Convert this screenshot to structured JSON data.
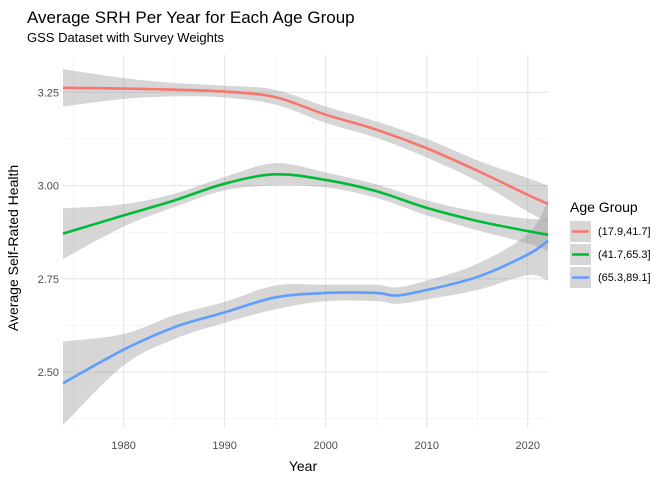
{
  "chart_data": {
    "type": "line",
    "title": "Average SRH Per Year for Each Age Group",
    "subtitle": "GSS Dataset with Survey Weights",
    "xlabel": "Year",
    "ylabel": "Average Self-Rated Health",
    "xlim": [
      1974,
      2022
    ],
    "ylim": [
      2.35,
      3.35
    ],
    "x_ticks": [
      "1980",
      "1990",
      "2000",
      "2010",
      "2020"
    ],
    "y_ticks": [
      "2.50",
      "2.75",
      "3.00",
      "3.25"
    ],
    "grid": true,
    "legend": {
      "title": "Age Group",
      "position": "right"
    },
    "series": [
      {
        "name": "(17.9,41.7]",
        "color": "#F8766D",
        "x": [
          1974,
          1980,
          1985,
          1990,
          1995,
          2000,
          2005,
          2010,
          2015,
          2020,
          2022
        ],
        "y": [
          3.262,
          3.26,
          3.257,
          3.252,
          3.237,
          3.19,
          3.15,
          3.1,
          3.04,
          2.975,
          2.951
        ],
        "lower": [
          3.212,
          3.232,
          3.239,
          3.236,
          3.217,
          3.168,
          3.128,
          3.075,
          3.012,
          2.93,
          2.902
        ],
        "upper": [
          3.312,
          3.288,
          3.275,
          3.268,
          3.257,
          3.212,
          3.172,
          3.125,
          3.068,
          3.02,
          3.0
        ]
      },
      {
        "name": "(41.7,65.3]",
        "color": "#00BA38",
        "x": [
          1974,
          1980,
          1985,
          1990,
          1995,
          2000,
          2005,
          2010,
          2015,
          2020,
          2022
        ],
        "y": [
          2.871,
          2.92,
          2.96,
          3.005,
          3.03,
          3.015,
          2.985,
          2.94,
          2.905,
          2.878,
          2.868
        ],
        "lower": [
          2.803,
          2.89,
          2.942,
          2.987,
          3.0,
          2.995,
          2.967,
          2.92,
          2.88,
          2.845,
          2.825
        ],
        "upper": [
          2.939,
          2.95,
          2.978,
          3.023,
          3.06,
          3.035,
          3.003,
          2.96,
          2.93,
          2.911,
          2.911
        ]
      },
      {
        "name": "(65.3,89.1]",
        "color": "#619CFF",
        "x": [
          1974,
          1980,
          1985,
          1990,
          1995,
          2000,
          2005,
          2007,
          2010,
          2015,
          2020,
          2022
        ],
        "y": [
          2.47,
          2.56,
          2.62,
          2.66,
          2.7,
          2.712,
          2.712,
          2.705,
          2.72,
          2.755,
          2.815,
          2.852
        ],
        "lower": [
          2.358,
          2.518,
          2.588,
          2.632,
          2.668,
          2.69,
          2.69,
          2.683,
          2.695,
          2.72,
          2.76,
          2.745
        ],
        "upper": [
          2.582,
          2.602,
          2.652,
          2.688,
          2.732,
          2.734,
          2.734,
          2.727,
          2.745,
          2.79,
          2.87,
          2.959
        ]
      }
    ]
  }
}
